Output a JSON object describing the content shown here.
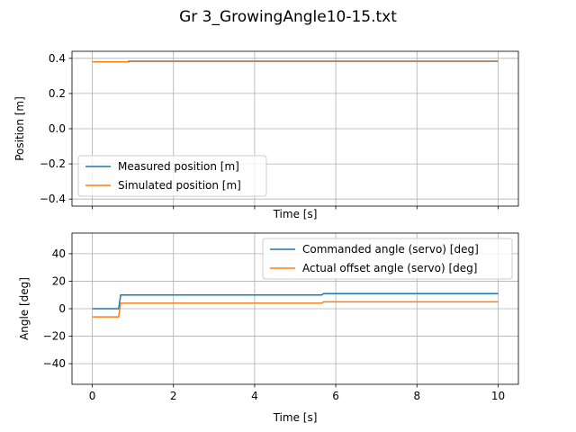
{
  "figure": {
    "title": "Gr 3_GrowingAngle10-15.txt"
  },
  "chart_data": [
    {
      "type": "line",
      "xlabel": "Time [s]",
      "ylabel": "Position [m]",
      "xlim": [
        -0.5,
        10.5
      ],
      "ylim": [
        -0.44,
        0.44
      ],
      "xticks": [
        0,
        2,
        4,
        6,
        8,
        10
      ],
      "yticks": [
        -0.4,
        -0.2,
        0.0,
        0.2,
        0.4
      ],
      "ytick_labels": [
        "−0.4",
        "−0.2",
        "0.0",
        "0.2",
        "0.4"
      ],
      "show_xtick_labels": false,
      "grid": true,
      "legend_position": "lower-left",
      "series": [
        {
          "name": "Measured position [m]",
          "color": "#1f77b4",
          "x": [
            0,
            0.9,
            0.9,
            10
          ],
          "y": [
            0.38,
            0.38,
            0.383,
            0.383
          ]
        },
        {
          "name": "Simulated position [m]",
          "color": "#ff7f0e",
          "x": [
            0,
            0.9,
            0.9,
            10
          ],
          "y": [
            0.38,
            0.38,
            0.385,
            0.385
          ]
        }
      ]
    },
    {
      "type": "line",
      "xlabel": "Time [s]",
      "ylabel": "Angle [deg]",
      "xlim": [
        -0.5,
        10.5
      ],
      "ylim": [
        -55,
        55
      ],
      "xticks": [
        0,
        2,
        4,
        6,
        8,
        10
      ],
      "xtick_labels": [
        "0",
        "2",
        "4",
        "6",
        "8",
        "10"
      ],
      "yticks": [
        -40,
        -20,
        0,
        20,
        40
      ],
      "ytick_labels": [
        "−40",
        "−20",
        "0",
        "20",
        "40"
      ],
      "show_xtick_labels": true,
      "grid": true,
      "legend_position": "upper-right",
      "series": [
        {
          "name": "Commanded angle (servo) [deg]",
          "color": "#1f77b4",
          "x": [
            0,
            0.65,
            0.7,
            5.65,
            5.7,
            10
          ],
          "y": [
            0,
            0,
            10,
            10,
            11,
            11
          ]
        },
        {
          "name": "Actual offset angle (servo) [deg]",
          "color": "#ff7f0e",
          "x": [
            0,
            0.65,
            0.7,
            5.65,
            5.7,
            10
          ],
          "y": [
            -6,
            -6,
            4,
            4,
            5,
            5
          ]
        }
      ]
    }
  ]
}
